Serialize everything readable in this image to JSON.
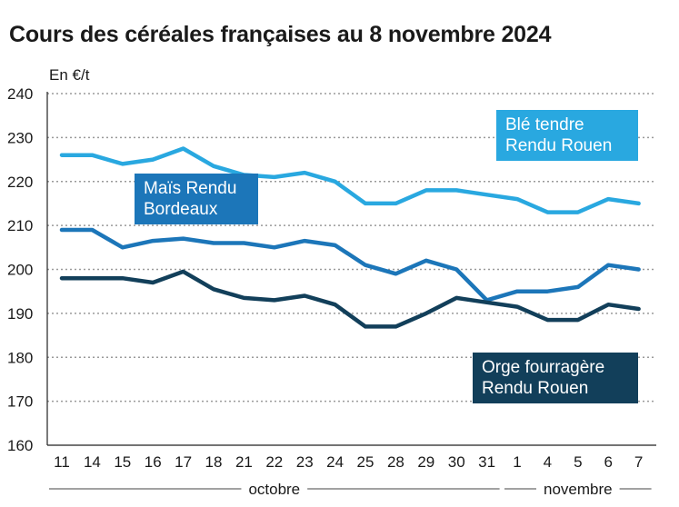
{
  "title": "Cours des céréales françaises au 8 novembre 2024",
  "chart_data": {
    "type": "line",
    "title": "Cours des céréales françaises au 8 novembre 2024",
    "ylabel": "En €/t",
    "xlabel": "",
    "ylim": [
      160,
      240
    ],
    "yticks": [
      160,
      170,
      180,
      190,
      200,
      210,
      220,
      230,
      240
    ],
    "grid": true,
    "categories": [
      "11",
      "14",
      "15",
      "16",
      "17",
      "18",
      "21",
      "22",
      "23",
      "24",
      "25",
      "28",
      "29",
      "30",
      "31",
      "1",
      "4",
      "5",
      "6",
      "7"
    ],
    "months": [
      {
        "label": "octobre",
        "from": "11",
        "to": "31"
      },
      {
        "label": "novembre",
        "from": "1",
        "to": "7"
      }
    ],
    "series": [
      {
        "name": "Blé tendre Rendu Rouen",
        "label_lines": [
          "Blé tendre",
          "Rendu Rouen"
        ],
        "color": "#29a8e0",
        "values": [
          226,
          226,
          224,
          225,
          227.5,
          223.5,
          221.5,
          221,
          222,
          220,
          215,
          215,
          218,
          218,
          217,
          216,
          213,
          213,
          216,
          215
        ]
      },
      {
        "name": "Maïs Rendu Bordeaux",
        "label_lines": [
          "Maïs Rendu",
          "Bordeaux"
        ],
        "color": "#1c76b9",
        "values": [
          209,
          209,
          205,
          206.5,
          207,
          206,
          206,
          205,
          206.5,
          205.5,
          201,
          199,
          202,
          200,
          193,
          195,
          195,
          196,
          201,
          200
        ]
      },
      {
        "name": "Orge fourragère Rendu Rouen",
        "label_lines": [
          "Orge fourragère",
          "Rendu Rouen"
        ],
        "color": "#123f5a",
        "values": [
          198,
          198,
          198,
          197,
          199.5,
          195.5,
          193.5,
          193,
          194,
          192,
          187,
          187,
          190,
          193.5,
          192.5,
          191.5,
          188.5,
          188.5,
          192,
          191
        ]
      }
    ]
  }
}
